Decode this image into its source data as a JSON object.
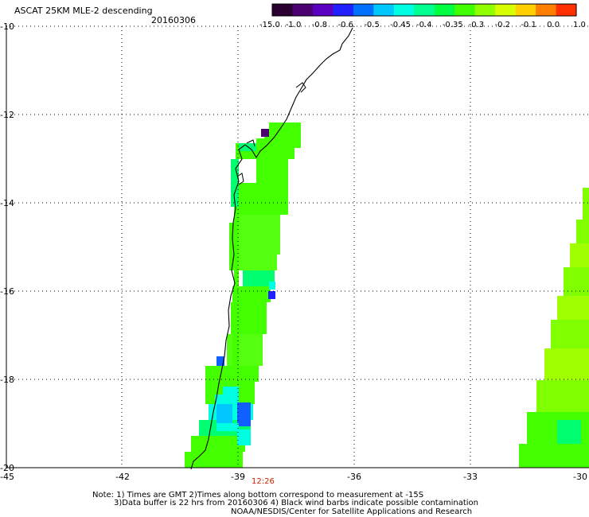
{
  "header": {
    "title": "ASCAT 25KM MLE-2 descending",
    "date": "20160306"
  },
  "colorbar": {
    "colors": [
      "#2a0030",
      "#4a0070",
      "#5a00c0",
      "#2020ff",
      "#0070ff",
      "#00c8ff",
      "#00ffe0",
      "#00ff90",
      "#00ff40",
      "#40ff00",
      "#90ff00",
      "#d8ff00",
      "#ffd000",
      "#ff8000",
      "#ff3000"
    ],
    "labels": [
      "-15.0",
      "-1.0",
      "-0.8",
      "-0.6",
      "-0.5",
      "-0.45",
      "-0.4",
      "-0.35",
      "-0.3",
      "-0.2",
      "-0.1",
      "0.0",
      "1.0"
    ]
  },
  "map": {
    "lat_labels": [
      "-10",
      "-12",
      "-14",
      "-16",
      "-18",
      "-20"
    ],
    "lon_labels": [
      "-45",
      "-42",
      "-39",
      "-36",
      "-33",
      "-30"
    ],
    "time_label": "12:26",
    "time_color": "#cc2200"
  },
  "notes": {
    "line1": "Note: 1) Times are GMT 2)Times along bottom correspond to measurement at -15S",
    "line2": "3)Data buffer is 22 hrs from 20160306 4) Black wind barbs indicate possible contamination",
    "line3": "NOAA/NESDIS/Center for Satellite Applications and Research"
  }
}
